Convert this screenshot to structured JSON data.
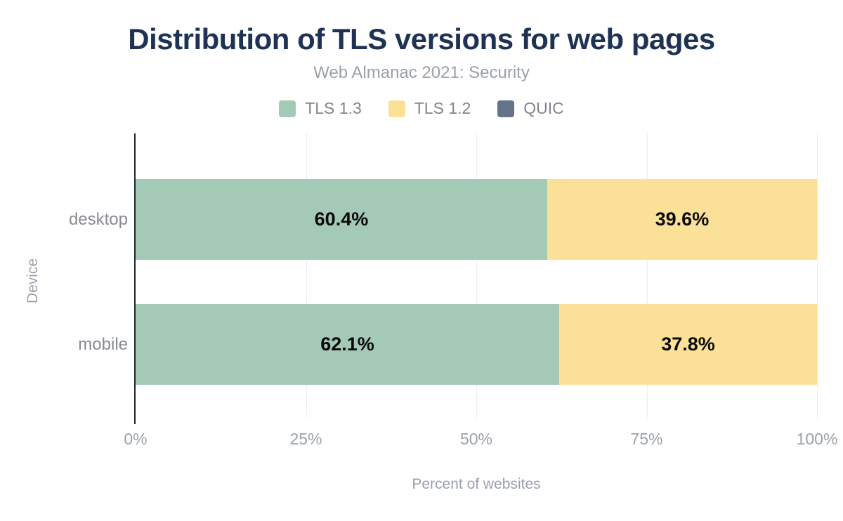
{
  "header": {
    "title": "Distribution of TLS versions for web pages",
    "subtitle": "Web Almanac 2021: Security"
  },
  "legend": [
    {
      "label": "TLS 1.3",
      "color": "#a4c9b6"
    },
    {
      "label": "TLS 1.2",
      "color": "#fbe198"
    },
    {
      "label": "QUIC",
      "color": "#64748b"
    }
  ],
  "chart_data": {
    "type": "bar",
    "orientation": "horizontal",
    "stacked": true,
    "title": "Distribution of TLS versions for web pages",
    "subtitle": "Web Almanac 2021: Security",
    "xlabel": "Percent of websites",
    "ylabel": "Device",
    "xlim": [
      0,
      100
    ],
    "x_ticks": [
      0,
      25,
      50,
      75,
      100
    ],
    "x_tick_labels": [
      "0%",
      "25%",
      "50%",
      "75%",
      "100%"
    ],
    "categories": [
      "desktop",
      "mobile"
    ],
    "series": [
      {
        "name": "TLS 1.3",
        "color": "#a4c9b6",
        "values": [
          60.4,
          62.1
        ],
        "labels": [
          "60.4%",
          "62.1%"
        ]
      },
      {
        "name": "TLS 1.2",
        "color": "#fbe198",
        "values": [
          39.6,
          37.8
        ],
        "labels": [
          "39.6%",
          "37.8%"
        ]
      },
      {
        "name": "QUIC",
        "color": "#64748b",
        "values": [
          0,
          0
        ],
        "labels": [
          "",
          ""
        ]
      }
    ],
    "grid": true,
    "legend_position": "top"
  },
  "layout_colors": {
    "title": "#1e3254",
    "muted_text": "#9aa1a9",
    "category_text": "#878c92",
    "legend_text": "#7f868d",
    "bar_label": "#0a0a0a",
    "gridline": "#ebedf0",
    "axis_line": "#21262e",
    "background": "#ffffff"
  }
}
